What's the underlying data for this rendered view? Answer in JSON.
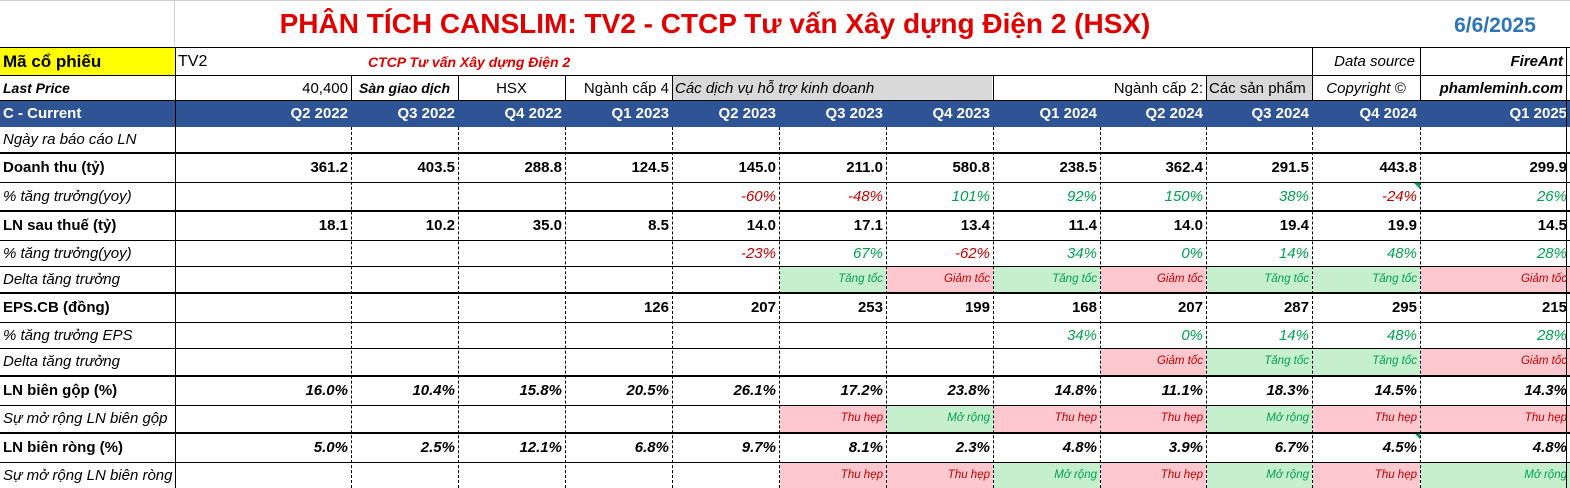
{
  "title": "PHÂN TÍCH CANSLIM: TV2 - CTCP Tư vấn Xây dựng Điện 2 (HSX)",
  "date": "6/6/2025",
  "info": {
    "ticker_label": "Mã cổ phiếu",
    "ticker": "TV2",
    "company": "CTCP Tư vấn Xây dựng Điện 2",
    "data_source_label": "Data source",
    "data_source": "FireAnt",
    "last_price_label": "Last Price",
    "last_price": "40,400",
    "exchange_label": "Sàn giao dịch",
    "exchange": "HSX",
    "sector4_label": "Ngành cấp 4",
    "sector4": "Các dịch vụ hỗ trợ kinh doanh",
    "sector2_label": "Ngành cấp 2:",
    "sector2": "Các sản phẩm",
    "copyright_label": "Copyright ©",
    "copyright": "phamleminh.com"
  },
  "header": {
    "label": "C - Current",
    "quarters": [
      "Q2 2022",
      "Q3 2022",
      "Q4 2022",
      "Q1 2023",
      "Q2 2023",
      "Q3 2023",
      "Q4 2023",
      "Q1 2024",
      "Q2 2024",
      "Q3 2024",
      "Q4 2024",
      "Q1 2025"
    ]
  },
  "rows": [
    {
      "label": "Ngày ra báo cáo LN",
      "lstyle": "i",
      "vstyle": "",
      "values": [
        "",
        "",
        "",
        "",
        "",
        "",
        "",
        "",
        "",
        "",
        "",
        ""
      ]
    },
    {
      "label": "Doanh thu (tỷ)",
      "lstyle": "b",
      "vstyle": "b",
      "values": [
        "361.2",
        "403.5",
        "288.8",
        "124.5",
        "145.0",
        "211.0",
        "580.8",
        "238.5",
        "362.4",
        "291.5",
        "443.8",
        "299.9"
      ]
    },
    {
      "label": "% tăng trưởng(yoy)",
      "lstyle": "i",
      "vstyle": "i",
      "values": [
        "",
        "",
        "",
        "",
        "-60%",
        "-48%",
        "101%",
        "92%",
        "150%",
        "38%",
        "-24%",
        "26%"
      ]
    },
    {
      "label": "LN sau thuế (tỷ)",
      "lstyle": "b",
      "vstyle": "b",
      "values": [
        "18.1",
        "10.2",
        "35.0",
        "8.5",
        "14.0",
        "17.1",
        "13.4",
        "11.4",
        "14.0",
        "19.4",
        "19.9",
        "14.5"
      ]
    },
    {
      "label": "% tăng trưởng(yoy)",
      "lstyle": "i",
      "vstyle": "i",
      "values": [
        "",
        "",
        "",
        "",
        "-23%",
        "67%",
        "-62%",
        "34%",
        "0%",
        "14%",
        "48%",
        "28%"
      ]
    },
    {
      "label": "Delta tăng trưởng",
      "lstyle": "i",
      "vstyle": "i sm",
      "values": [
        "",
        "",
        "",
        "",
        "",
        "Tăng tốc",
        "Giảm tốc",
        "Tăng tốc",
        "Giảm tốc",
        "Tăng tốc",
        "Tăng tốc",
        "Giảm tốc"
      ]
    },
    {
      "label": "EPS.CB (đồng)",
      "lstyle": "b",
      "vstyle": "b",
      "values": [
        "",
        "",
        "",
        "126",
        "207",
        "253",
        "199",
        "168",
        "207",
        "287",
        "295",
        "215"
      ]
    },
    {
      "label": "% tăng trưởng EPS",
      "lstyle": "i",
      "vstyle": "i",
      "values": [
        "",
        "",
        "",
        "",
        "",
        "",
        "",
        "34%",
        "0%",
        "14%",
        "48%",
        "28%"
      ]
    },
    {
      "label": "Delta tăng trưởng",
      "lstyle": "i",
      "vstyle": "i sm",
      "values": [
        "",
        "",
        "",
        "",
        "",
        "",
        "",
        "",
        "Giảm tốc",
        "Tăng tốc",
        "Tăng tốc",
        "Giảm tốc"
      ]
    },
    {
      "label": "LN biên gộp (%)",
      "lstyle": "b",
      "vstyle": "b i",
      "values": [
        "16.0%",
        "10.4%",
        "15.8%",
        "20.5%",
        "26.1%",
        "17.2%",
        "23.8%",
        "14.8%",
        "11.1%",
        "18.3%",
        "14.5%",
        "14.3%"
      ]
    },
    {
      "label": "Sự mở rộng LN biên gộp",
      "lstyle": "i",
      "vstyle": "i sm",
      "values": [
        "",
        "",
        "",
        "",
        "",
        "Thu hẹp",
        "Mở rộng",
        "Thu hẹp",
        "Thu hẹp",
        "Mở rộng",
        "Thu hẹp",
        "Thu hẹp"
      ]
    },
    {
      "label": "LN biên ròng (%)",
      "lstyle": "b",
      "vstyle": "b i",
      "values": [
        "5.0%",
        "2.5%",
        "12.1%",
        "6.8%",
        "9.7%",
        "8.1%",
        "2.3%",
        "4.8%",
        "3.9%",
        "6.7%",
        "4.5%",
        "4.8%"
      ]
    },
    {
      "label": "Sự mở rộng LN biên ròng",
      "lstyle": "i",
      "vstyle": "i sm",
      "values": [
        "",
        "",
        "",
        "",
        "",
        "Thu hẹp",
        "Thu hẹp",
        "Mở rộng",
        "Thu hẹp",
        "Mở rộng",
        "Thu hẹp",
        "Mở rộng"
      ]
    }
  ],
  "colors": {
    "title_red": "#e00000",
    "date_blue": "#2e75b6",
    "header_blue": "#2f5496",
    "positive_green": "#00a050",
    "negative_red": "#c00000",
    "fill_green": "#c6efce",
    "fill_red": "#ffc7ce",
    "fill_yellow": "#ffff00",
    "fill_gray": "#d9d9d9"
  }
}
